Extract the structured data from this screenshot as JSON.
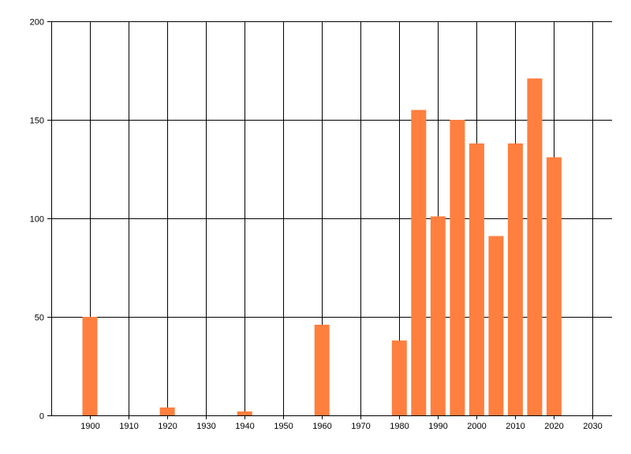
{
  "chart_data": {
    "type": "bar",
    "title": "",
    "xlabel": "",
    "ylabel": "",
    "x": [
      1900,
      1920,
      1940,
      1960,
      1980,
      1985,
      1990,
      1995,
      2000,
      2005,
      2010,
      2015,
      2020
    ],
    "values": [
      50,
      4,
      2,
      46,
      38,
      155,
      101,
      150,
      138,
      91,
      138,
      171,
      131
    ],
    "xlim": [
      1890,
      2035
    ],
    "ylim": [
      0,
      200
    ],
    "x_ticks": [
      1900,
      1910,
      1920,
      1930,
      1940,
      1950,
      1960,
      1970,
      1980,
      1990,
      2000,
      2010,
      2020,
      2030
    ],
    "y_ticks": [
      0,
      50,
      100,
      150,
      200
    ],
    "grid": true,
    "legend": "none",
    "bar_color": "#ff7f3f"
  }
}
